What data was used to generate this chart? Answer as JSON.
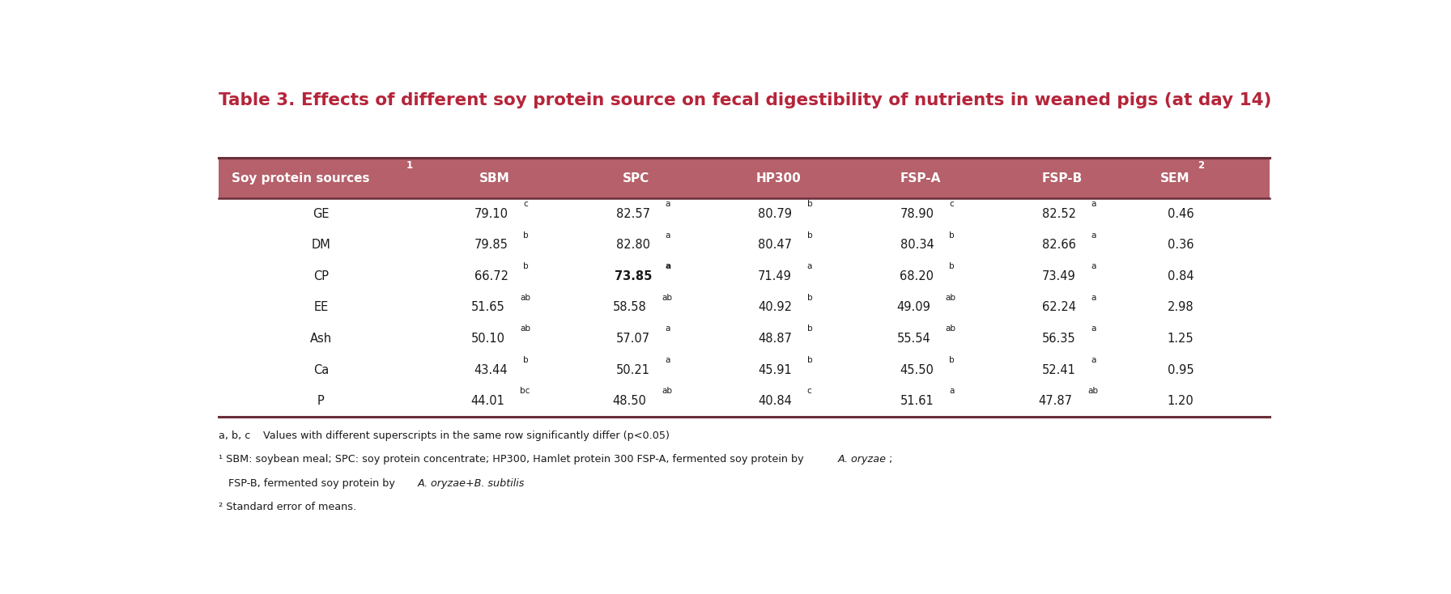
{
  "title": "Table 3. Effects of different soy protein source on fecal digestibility of nutrients in weaned pigs (at day 14)",
  "title_color": "#b5253a",
  "header_bg": "#b5606a",
  "header_text_color": "#ffffff",
  "border_color": "#6b2d3a",
  "col_header": "Soy protein sources",
  "col_header_sup": "1",
  "columns": [
    "SBM",
    "SPC",
    "HP300",
    "FSP-A",
    "FSP-B",
    "SEM"
  ],
  "col_sups": [
    "",
    "",
    "",
    "",
    "",
    "2"
  ],
  "rows": [
    {
      "label": "GE",
      "values": [
        "79.10",
        "82.57",
        "80.79",
        "78.90",
        "82.52",
        "0.46"
      ],
      "sups": [
        "c",
        "a",
        "b",
        "c",
        "a",
        ""
      ],
      "bold_indices": []
    },
    {
      "label": "DM",
      "values": [
        "79.85",
        "82.80",
        "80.47",
        "80.34",
        "82.66",
        "0.36"
      ],
      "sups": [
        "b",
        "a",
        "b",
        "b",
        "a",
        ""
      ],
      "bold_indices": []
    },
    {
      "label": "CP",
      "values": [
        "66.72",
        "73.85",
        "71.49",
        "68.20",
        "73.49",
        "0.84"
      ],
      "sups": [
        "b",
        "a",
        "a",
        "b",
        "a",
        ""
      ],
      "bold_indices": [
        1
      ]
    },
    {
      "label": "EE",
      "values": [
        "51.65",
        "58.58",
        "40.92",
        "49.09",
        "62.24",
        "2.98"
      ],
      "sups": [
        "ab",
        "ab",
        "b",
        "ab",
        "a",
        ""
      ],
      "bold_indices": []
    },
    {
      "label": "Ash",
      "values": [
        "50.10",
        "57.07",
        "48.87",
        "55.54",
        "56.35",
        "1.25"
      ],
      "sups": [
        "ab",
        "a",
        "b",
        "ab",
        "a",
        ""
      ],
      "bold_indices": []
    },
    {
      "label": "Ca",
      "values": [
        "43.44",
        "50.21",
        "45.91",
        "45.50",
        "52.41",
        "0.95"
      ],
      "sups": [
        "b",
        "a",
        "b",
        "b",
        "a",
        ""
      ],
      "bold_indices": []
    },
    {
      "label": "P",
      "values": [
        "44.01",
        "48.50",
        "40.84",
        "51.61",
        "47.87",
        "1.20"
      ],
      "sups": [
        "bc",
        "ab",
        "c",
        "a",
        "ab",
        ""
      ],
      "bold_indices": []
    }
  ],
  "footnotes": [
    {
      "text": "a, b, c Values with different superscripts in the same row significantly differ (p<0.05)",
      "italic_ranges": []
    },
    {
      "text": "¹ SBM: soybean meal; SPC: soy protein concentrate; HP300, Hamlet protein 300 FSP-A, fermented soy protein by A. oryzae;",
      "italic_start": "A. oryzae"
    },
    {
      "text": "   FSP-B, fermented soy protein by A. oryzae+B. subtilis",
      "italic_start": "A. oryzae+B. subtilis"
    },
    {
      "text": "² Standard error of means.",
      "italic_start": ""
    }
  ],
  "background_color": "#ffffff"
}
